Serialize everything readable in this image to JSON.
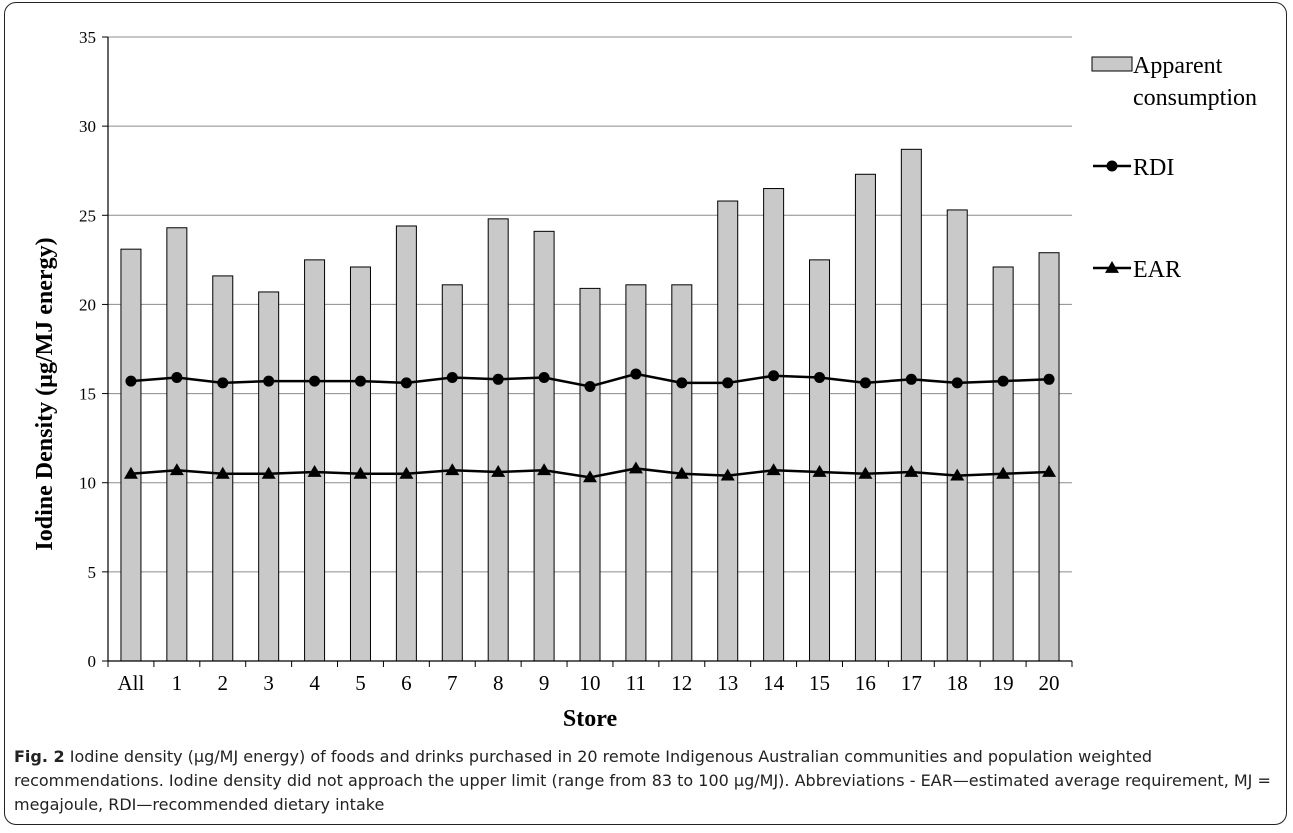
{
  "chart_data": {
    "type": "bar",
    "xlabel": "Store",
    "ylabel": "Iodine Density (µg/MJ energy)",
    "ylim": [
      0,
      35
    ],
    "yticks": [
      0,
      5,
      10,
      15,
      20,
      25,
      30,
      35
    ],
    "grid": true,
    "legend_position": "right",
    "categories": [
      "All",
      "1",
      "2",
      "3",
      "4",
      "5",
      "6",
      "7",
      "8",
      "9",
      "10",
      "11",
      "12",
      "13",
      "14",
      "15",
      "16",
      "17",
      "18",
      "19",
      "20"
    ],
    "series": [
      {
        "name": "Apparent consumption",
        "legend_lines": [
          "Apparent",
          "consumption"
        ],
        "kind": "bar",
        "color": "#c9c9c9",
        "values": [
          23.1,
          24.3,
          21.6,
          20.7,
          22.5,
          22.1,
          24.4,
          21.1,
          24.8,
          24.1,
          20.9,
          21.1,
          21.1,
          25.8,
          26.5,
          22.5,
          27.3,
          28.7,
          25.3,
          22.1,
          22.9
        ]
      },
      {
        "name": "RDI",
        "legend_lines": [
          "RDI"
        ],
        "kind": "line",
        "marker": "circle",
        "color": "#000000",
        "values": [
          15.7,
          15.9,
          15.6,
          15.7,
          15.7,
          15.7,
          15.6,
          15.9,
          15.8,
          15.9,
          15.4,
          16.1,
          15.6,
          15.6,
          16.0,
          15.9,
          15.6,
          15.8,
          15.6,
          15.7,
          15.8
        ]
      },
      {
        "name": "EAR",
        "legend_lines": [
          "EAR"
        ],
        "kind": "line",
        "marker": "triangle",
        "color": "#000000",
        "values": [
          10.5,
          10.7,
          10.5,
          10.5,
          10.6,
          10.5,
          10.5,
          10.7,
          10.6,
          10.7,
          10.3,
          10.8,
          10.5,
          10.4,
          10.7,
          10.6,
          10.5,
          10.6,
          10.4,
          10.5,
          10.6
        ]
      }
    ]
  },
  "caption": {
    "label": "Fig. 2",
    "text": "Iodine density (µg/MJ energy) of foods and drinks purchased in 20 remote Indigenous Australian communities and population weighted recommendations. Iodine density did not approach the upper limit (range from 83 to 100 µg/MJ). Abbreviations - EAR—estimated average requirement, MJ = megajoule, RDI—recommended dietary intake"
  }
}
